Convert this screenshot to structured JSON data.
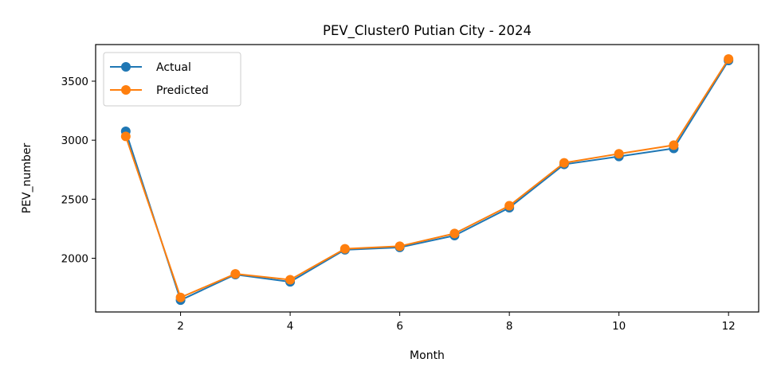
{
  "chart_data": {
    "type": "line",
    "title": "PEV_Cluster0 Putian City - 2024",
    "xlabel": "Month",
    "ylabel": "PEV_number",
    "x": [
      1,
      2,
      3,
      4,
      5,
      6,
      7,
      8,
      9,
      10,
      11,
      12
    ],
    "xlim": [
      0.45,
      12.55
    ],
    "ylim": [
      1545,
      3810
    ],
    "xticks": [
      2,
      4,
      6,
      8,
      10,
      12
    ],
    "yticks": [
      2000,
      2500,
      3000,
      3500
    ],
    "grid": false,
    "legend_position": "top-left",
    "series": [
      {
        "name": "Actual",
        "color": "#1f77b4",
        "marker": "circle",
        "values": [
          3075,
          1645,
          1862,
          1800,
          2072,
          2092,
          2192,
          2428,
          2795,
          2862,
          2930,
          3675
        ]
      },
      {
        "name": "Predicted",
        "color": "#ff7f0e",
        "marker": "circle",
        "values": [
          3032,
          1668,
          1868,
          1818,
          2080,
          2102,
          2210,
          2445,
          2808,
          2885,
          2958,
          3688
        ]
      }
    ]
  }
}
